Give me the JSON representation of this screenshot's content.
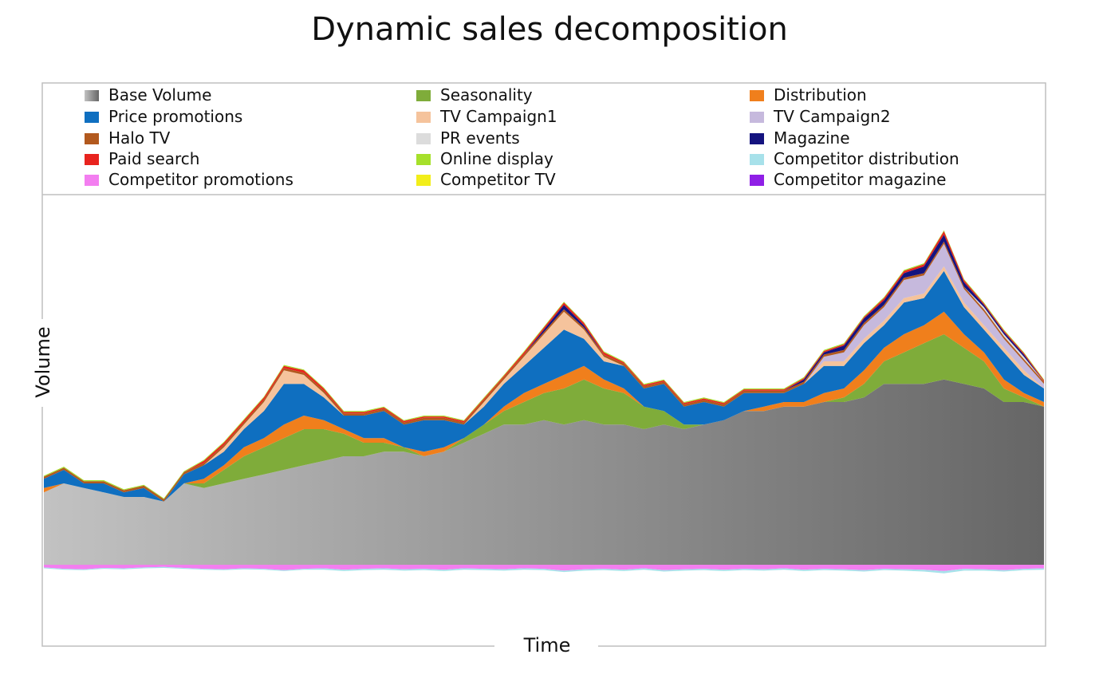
{
  "chart_data": {
    "type": "area",
    "title": "Dynamic sales decomposition",
    "xlabel": "Time",
    "ylabel": "Volume",
    "axis_ticks": "none",
    "grid": false,
    "legend_position": "top",
    "x": [
      0,
      2,
      4,
      6,
      8,
      10,
      12,
      14,
      16,
      18,
      20,
      22,
      24,
      26,
      28,
      30,
      32,
      34,
      36,
      38,
      40,
      42,
      44,
      46,
      48,
      50,
      52,
      54,
      56,
      58,
      60,
      62,
      64,
      66,
      68,
      70,
      72,
      74,
      76,
      78,
      80,
      82,
      84,
      86,
      88,
      90,
      92,
      94,
      96,
      98,
      100
    ],
    "series": [
      {
        "name": "Base Volume",
        "color": "#8c8c8c",
        "values": [
          16,
          18,
          17,
          16,
          15,
          15,
          14,
          18,
          17,
          18,
          19,
          20,
          21,
          22,
          23,
          24,
          24,
          25,
          25,
          24,
          25,
          27,
          29,
          31,
          31,
          32,
          31,
          32,
          31,
          31,
          30,
          31,
          30,
          31,
          32,
          34,
          34,
          35,
          35,
          36,
          36,
          37,
          40,
          40,
          40,
          41,
          40,
          39,
          36,
          36,
          35
        ]
      },
      {
        "name": "Seasonality",
        "color": "#7fac3a",
        "values": [
          0,
          0,
          0,
          0,
          0,
          0,
          0,
          0,
          1,
          3,
          5,
          6,
          7,
          8,
          7,
          5,
          3,
          2,
          1,
          0,
          0,
          1,
          2,
          3,
          5,
          6,
          8,
          9,
          8,
          7,
          5,
          3,
          1,
          0,
          0,
          0,
          0,
          0,
          0,
          0,
          1,
          3,
          5,
          7,
          9,
          10,
          8,
          6,
          3,
          1,
          0
        ]
      },
      {
        "name": "Distribution",
        "color": "#f07f1c",
        "values": [
          1,
          0,
          0,
          0,
          0,
          0,
          0,
          0,
          1,
          1,
          2,
          2,
          3,
          3,
          2,
          1,
          1,
          1,
          0,
          1,
          1,
          0,
          0,
          1,
          2,
          2,
          3,
          3,
          2,
          1,
          0,
          0,
          0,
          0,
          0,
          0,
          1,
          1,
          1,
          2,
          2,
          3,
          3,
          4,
          4,
          5,
          3,
          2,
          2,
          1,
          1
        ]
      },
      {
        "name": "Price promotions",
        "color": "#0f6fc0",
        "values": [
          2,
          3,
          1,
          2,
          1,
          2,
          0,
          2,
          3,
          3,
          4,
          6,
          9,
          7,
          5,
          3,
          5,
          6,
          5,
          7,
          6,
          3,
          4,
          5,
          6,
          8,
          10,
          6,
          4,
          5,
          4,
          6,
          4,
          5,
          3,
          4,
          3,
          2,
          4,
          6,
          5,
          6,
          5,
          7,
          6,
          9,
          6,
          5,
          6,
          4,
          3
        ]
      },
      {
        "name": "TV Campaign1",
        "color": "#f5c39c",
        "values": [
          0,
          0,
          0,
          0,
          0,
          0,
          0,
          0,
          0,
          1,
          1,
          2,
          3,
          2,
          1,
          0,
          0,
          0,
          0,
          0,
          0,
          0,
          1,
          1,
          2,
          3,
          4,
          2,
          1,
          0,
          0,
          0,
          0,
          0,
          0,
          0,
          0,
          0,
          0,
          1,
          1,
          1,
          1,
          1,
          1,
          1,
          1,
          1,
          1,
          1,
          0
        ]
      },
      {
        "name": "TV Campaign2",
        "color": "#c6b9dd",
        "values": [
          0,
          0,
          0,
          0,
          0,
          0,
          0,
          0,
          0,
          0,
          0,
          0,
          0,
          0,
          0,
          0,
          0,
          0,
          0,
          0,
          0,
          0,
          0,
          0,
          0,
          0,
          0,
          0,
          0,
          0,
          0,
          0,
          0,
          0,
          0,
          0,
          0,
          0,
          0,
          1,
          2,
          3,
          3,
          4,
          4,
          5,
          3,
          3,
          2,
          2,
          1
        ]
      },
      {
        "name": "Halo TV",
        "color": "#b2591e",
        "values": [
          0.5,
          0.5,
          0.5,
          0.5,
          0.5,
          0.5,
          0.5,
          0.5,
          0.5,
          0.5,
          0.5,
          0.5,
          0.5,
          0.5,
          0.5,
          0.5,
          0.5,
          0.5,
          0.5,
          0.5,
          0.5,
          0.5,
          0.5,
          0.5,
          0.5,
          0.5,
          0.5,
          0.5,
          0.5,
          0.5,
          0.5,
          0.5,
          0.5,
          0.5,
          0.5,
          0.5,
          0.5,
          0.5,
          0.5,
          0.5,
          0.5,
          0.5,
          0.5,
          0.5,
          0.5,
          0.5,
          0.5,
          0.5,
          0.5,
          0.5,
          0.5
        ]
      },
      {
        "name": "PR events",
        "color": "#dcdcdc",
        "values": [
          0,
          0,
          0,
          0,
          0,
          0,
          0,
          0,
          0,
          0,
          0,
          0,
          0,
          0,
          0,
          0,
          0,
          0,
          0,
          0,
          0,
          0,
          0,
          0,
          0,
          0,
          0,
          0,
          0,
          0,
          0,
          0,
          0,
          0,
          0,
          0,
          0,
          0,
          0,
          0,
          0,
          0,
          0,
          0,
          0,
          0,
          0,
          0.5,
          0.5,
          0.5,
          0
        ]
      },
      {
        "name": "Magazine",
        "color": "#14137f",
        "values": [
          0,
          0,
          0,
          0,
          0,
          0,
          0,
          0,
          0,
          0,
          0,
          0,
          0,
          0,
          0,
          0,
          0,
          0,
          0,
          0,
          0,
          0,
          0,
          0,
          0,
          0.5,
          1,
          0.5,
          0,
          0,
          0,
          0,
          0,
          0,
          0,
          0,
          0,
          0,
          0.5,
          0.5,
          1,
          1,
          1,
          1,
          1.5,
          1.5,
          1,
          0.5,
          0.5,
          0.5,
          0
        ]
      },
      {
        "name": "Paid search",
        "color": "#e8231e",
        "values": [
          0,
          0,
          0,
          0,
          0,
          0,
          0,
          0,
          0.5,
          0.5,
          0.5,
          0.5,
          0.5,
          0.5,
          0.5,
          0.3,
          0.3,
          0.3,
          0.3,
          0.3,
          0.3,
          0.3,
          0.3,
          0.3,
          0.5,
          0.5,
          0.5,
          0.5,
          0.5,
          0.3,
          0.3,
          0.3,
          0.3,
          0.3,
          0.3,
          0.3,
          0.3,
          0.3,
          0.3,
          0.3,
          0.3,
          0.3,
          0.5,
          0.5,
          0.5,
          0.8,
          0.5,
          0.3,
          0.3,
          0.3,
          0.3
        ]
      },
      {
        "name": "Online display",
        "color": "#a6e02b",
        "values": [
          0.2,
          0.2,
          0.2,
          0.2,
          0.2,
          0.2,
          0.2,
          0.2,
          0.2,
          0.2,
          0.2,
          0.2,
          0.2,
          0.2,
          0.2,
          0.2,
          0.2,
          0.2,
          0.2,
          0.2,
          0.2,
          0.2,
          0.2,
          0.2,
          0.2,
          0.2,
          0.2,
          0.2,
          0.2,
          0.2,
          0.2,
          0.2,
          0.2,
          0.2,
          0.2,
          0.2,
          0.2,
          0.2,
          0.2,
          0.2,
          0.2,
          0.2,
          0.2,
          0.2,
          0.2,
          0.2,
          0.2,
          0.2,
          0.2,
          0.2,
          0.2
        ]
      },
      {
        "name": "Competitor TV",
        "color": "#f2ee1a",
        "values": [
          0,
          0,
          0,
          0,
          0,
          0,
          0,
          0,
          0,
          0,
          0,
          0,
          0,
          0,
          0,
          0,
          0,
          0,
          0,
          0,
          0,
          0,
          0,
          0,
          0,
          0,
          0,
          0,
          0,
          0,
          0,
          0,
          0,
          0,
          0,
          0,
          0,
          0,
          0,
          0,
          0,
          0,
          0,
          0,
          0,
          0,
          0,
          0,
          0,
          0,
          0
        ]
      },
      {
        "name": "Competitor promotions",
        "color": "#f37ef0",
        "values": [
          -0.6,
          -0.9,
          -1.0,
          -0.7,
          -0.8,
          -0.6,
          -0.5,
          -0.7,
          -0.9,
          -1.0,
          -0.8,
          -0.9,
          -1.2,
          -0.9,
          -0.8,
          -1.1,
          -0.9,
          -0.8,
          -1.0,
          -0.9,
          -1.1,
          -0.8,
          -0.9,
          -1.0,
          -0.8,
          -0.9,
          -1.3,
          -1.0,
          -0.9,
          -1.1,
          -0.8,
          -1.2,
          -1.0,
          -0.9,
          -1.1,
          -0.9,
          -1.0,
          -0.8,
          -1.1,
          -0.9,
          -1.0,
          -1.2,
          -0.9,
          -1.0,
          -1.1,
          -1.4,
          -0.9,
          -1.0,
          -1.2,
          -0.9,
          -0.8
        ]
      },
      {
        "name": "Competitor distribution",
        "color": "#a7e1ea",
        "values": [
          -0.2,
          -0.2,
          -0.2,
          -0.2,
          -0.2,
          -0.2,
          -0.2,
          -0.2,
          -0.2,
          -0.2,
          -0.2,
          -0.2,
          -0.2,
          -0.2,
          -0.3,
          -0.3,
          -0.3,
          -0.3,
          -0.3,
          -0.3,
          -0.3,
          -0.3,
          -0.3,
          -0.3,
          -0.3,
          -0.3,
          -0.3,
          -0.3,
          -0.3,
          -0.3,
          -0.3,
          -0.3,
          -0.3,
          -0.3,
          -0.3,
          -0.3,
          -0.3,
          -0.3,
          -0.3,
          -0.3,
          -0.3,
          -0.3,
          -0.3,
          -0.3,
          -0.4,
          -0.5,
          -0.4,
          -0.3,
          -0.3,
          -0.3,
          -0.3
        ]
      },
      {
        "name": "Competitor magazine",
        "color": "#8f1fe6",
        "values": [
          0,
          0,
          0,
          0,
          0,
          0,
          0,
          0,
          0,
          0,
          0,
          0,
          0,
          0,
          0,
          0,
          0,
          0,
          0,
          0,
          0,
          0,
          0,
          0,
          0,
          0,
          0,
          0,
          0,
          0,
          0,
          0,
          0,
          0,
          0,
          0,
          0,
          0,
          0,
          0,
          0,
          0,
          0,
          0,
          0,
          0,
          0,
          0,
          0,
          0,
          0
        ]
      }
    ],
    "ylim": [
      -4,
      72
    ],
    "legend_columns": [
      [
        "Base Volume",
        "Price promotions",
        "Halo TV",
        "Paid search",
        "Competitor promotions"
      ],
      [
        "Seasonality",
        "TV Campaign1",
        "PR events",
        "Online display",
        "Competitor TV"
      ],
      [
        "Distribution",
        "TV Campaign2",
        "Magazine",
        "Competitor distribution",
        "Competitor magazine"
      ]
    ]
  }
}
